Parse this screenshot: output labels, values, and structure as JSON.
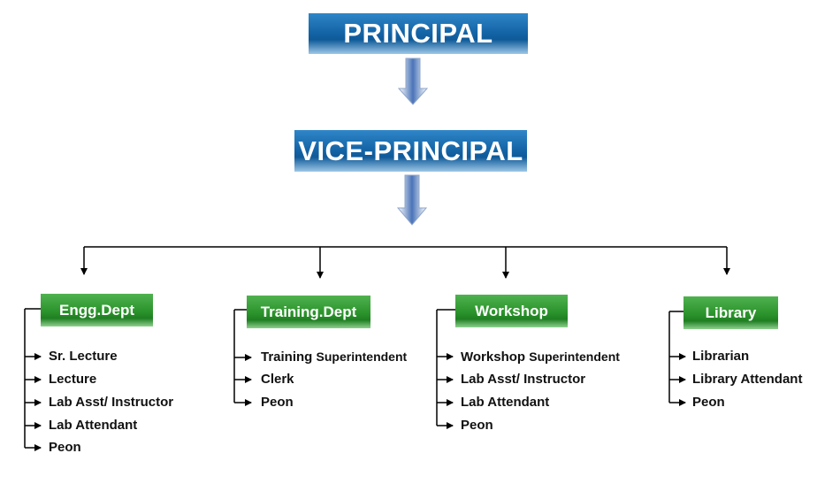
{
  "principal": "PRINCIPAL",
  "vice_principal": "VICE-PRINCIPAL",
  "departments": [
    {
      "name": "Engg.Dept",
      "roles": [
        "Sr. Lecture",
        "Lecture",
        "Lab Asst/ Instructor",
        "Lab Attendant",
        "Peon"
      ]
    },
    {
      "name": "Training.Dept",
      "roles": [
        "Training",
        "Clerk",
        "Peon"
      ],
      "first_role_suffix": "Superintendent"
    },
    {
      "name": "Workshop",
      "roles": [
        "Workshop",
        "Lab Asst/ Instructor",
        "Lab Attendant",
        "Peon"
      ],
      "first_role_suffix": "Superintendent"
    },
    {
      "name": "Library",
      "roles": [
        "Librarian",
        "Library Attendant",
        "Peon"
      ]
    }
  ],
  "colors": {
    "top_box": "#1566a8",
    "dept_box": "#2b932b",
    "down_arrow": "#4a74b8",
    "lines": "#000000"
  }
}
